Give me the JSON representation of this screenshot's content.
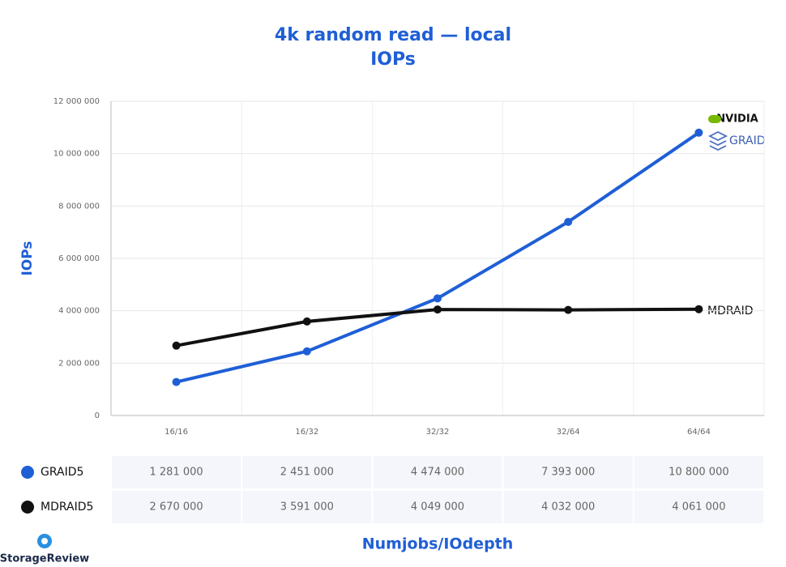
{
  "chart_data": {
    "type": "line",
    "title": "4k random read — local",
    "subtitle": "IOPs",
    "y_label": "IOPs",
    "x_label": "Numjobs/IOdepth",
    "categories": [
      "16/16",
      "16/32",
      "32/32",
      "32/64",
      "64/64"
    ],
    "series": [
      {
        "name": "GRAID5",
        "color": "#1f5fd6",
        "values": [
          1281000,
          2451000,
          4474000,
          7393000,
          10800000
        ],
        "value_labels": [
          "1 281 000",
          "2 451 000",
          "4 474 000",
          "7 393 000",
          "10 800 000"
        ]
      },
      {
        "name": "MDRAID5",
        "color": "#111111",
        "values": [
          2670000,
          3591000,
          4049000,
          4032000,
          4061000
        ],
        "value_labels": [
          "2 670 000",
          "3 591 000",
          "4 049 000",
          "4 032 000",
          "4 061 000"
        ]
      }
    ],
    "ylim": [
      0,
      12000000
    ],
    "yticks": [
      0,
      {
        "value": 2000000,
        "label": "2 000 000"
      },
      {
        "value": 4000000,
        "label": "4 000 000"
      },
      {
        "value": 6000000,
        "label": "6 000 000"
      },
      {
        "value": 8000000,
        "label": "8 000 000"
      },
      {
        "value": 10000000,
        "label": "10 000 000"
      },
      {
        "value": 12000000,
        "label": "12 000 000"
      }
    ],
    "grid": true,
    "annotations": [
      "NVIDIA",
      "GRAID",
      "MDRAID"
    ],
    "source": "StorageReview"
  }
}
